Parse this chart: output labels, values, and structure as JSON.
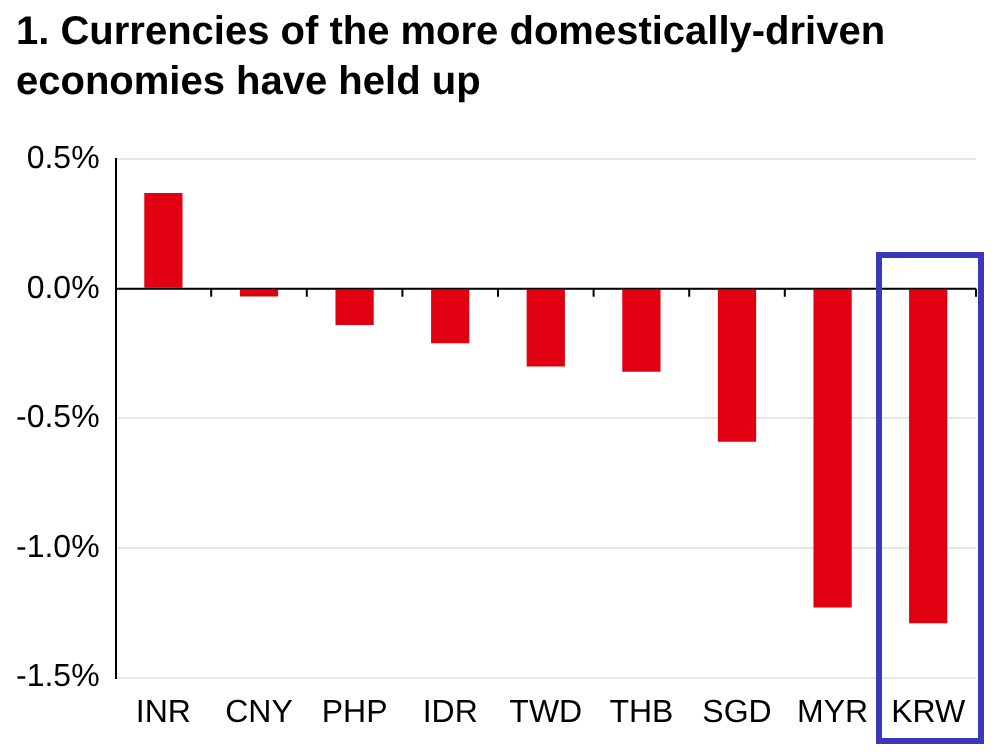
{
  "chart_data": {
    "type": "bar",
    "title": "1. Currencies of the more domestically-driven economies have held up",
    "categories": [
      "INR",
      "CNY",
      "PHP",
      "IDR",
      "TWD",
      "THB",
      "SGD",
      "MYR",
      "KRW"
    ],
    "values": [
      0.37,
      -0.03,
      -0.14,
      -0.21,
      -0.3,
      -0.32,
      -0.59,
      -1.23,
      -1.29
    ],
    "color": "#e00012",
    "ylim": [
      -1.5,
      0.5
    ],
    "yticks": [
      {
        "value": -1.5,
        "label": "-1.5%"
      },
      {
        "value": -1.0,
        "label": "-1.0%"
      },
      {
        "value": -0.5,
        "label": "-0.5%"
      },
      {
        "value": 0,
        "label": "0.0%"
      },
      {
        "value": 0.5,
        "label": "0.5%"
      }
    ],
    "grid": "y"
  }
}
